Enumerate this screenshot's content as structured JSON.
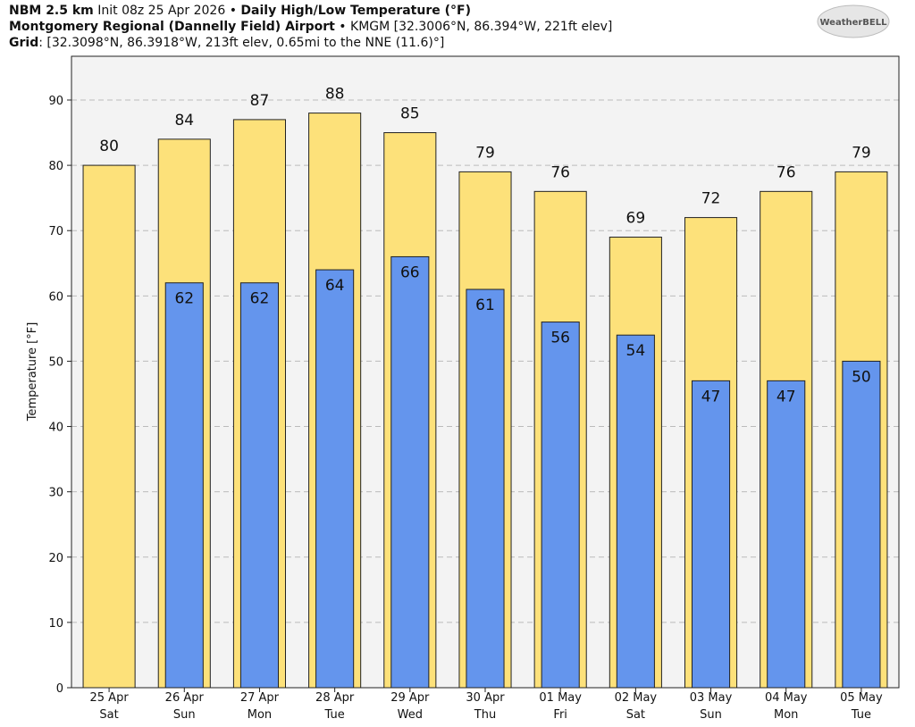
{
  "chart_data": {
    "type": "bar",
    "title": [
      "NBM 2.5 km",
      " Init 08z 25 Apr 2026 • ",
      "Daily High/Low Temperature (°F)"
    ],
    "subtitle": [
      "Montgomery Regional (Dannelly Field) Airport",
      " • KMGM [32.3006°N, 86.394°W, 221ft elev]"
    ],
    "grid_info": [
      "Grid",
      ": [32.3098°N, 86.3918°W, 213ft elev, 0.65mi to the NNE (11.6)°]"
    ],
    "logo": "WeatherBELL",
    "y_label": "Temperature [°F]",
    "categories": [
      "25 Apr",
      "26 Apr",
      "27 Apr",
      "28 Apr",
      "29 Apr",
      "30 Apr",
      "01 May",
      "02 May",
      "03 May",
      "04 May",
      "05 May"
    ],
    "weekdays": [
      "Sat",
      "Sun",
      "Mon",
      "Tue",
      "Wed",
      "Thu",
      "Fri",
      "Sat",
      "Sun",
      "Mon",
      "Tue"
    ],
    "series": [
      {
        "name": "High",
        "color": "#fde17a",
        "values": [
          80,
          84,
          87,
          88,
          85,
          79,
          76,
          69,
          72,
          76,
          79
        ]
      },
      {
        "name": "Low",
        "color": "#6495ed",
        "values": [
          null,
          62,
          62,
          64,
          66,
          61,
          56,
          54,
          47,
          47,
          50
        ]
      }
    ],
    "ylim": [
      0,
      96.7
    ],
    "yticks": [
      0,
      10,
      20,
      30,
      40,
      50,
      60,
      70,
      80,
      90
    ],
    "grid": true
  }
}
